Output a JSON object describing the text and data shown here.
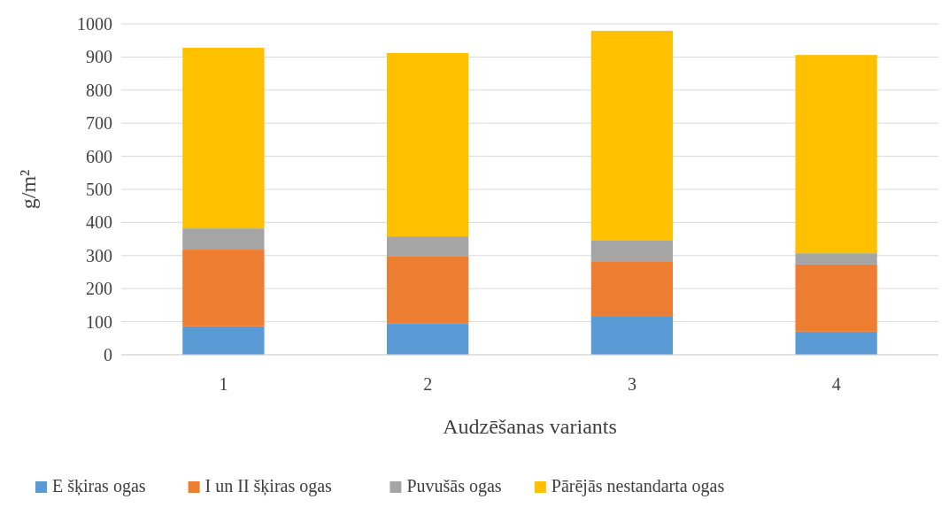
{
  "chart_data": {
    "type": "bar",
    "stacked": true,
    "xlabel": "Audzēšanas variants",
    "ylabel": "g/m²",
    "categories": [
      "1",
      "2",
      "3",
      "4"
    ],
    "series": [
      {
        "name": "E šķiras ogas",
        "color": "#5b9bd5",
        "values": [
          86,
          94,
          115,
          70
        ]
      },
      {
        "name": "I un II šķiras ogas",
        "color": "#ed7d31",
        "values": [
          232,
          203,
          168,
          203
        ]
      },
      {
        "name": "Puvušās ogas",
        "color": "#a5a5a5",
        "values": [
          64,
          61,
          62,
          34
        ]
      },
      {
        "name": "Pārējās nestandarta ogas",
        "color": "#ffc000",
        "values": [
          546,
          554,
          634,
          599
        ]
      }
    ],
    "ylim": [
      0,
      1000
    ],
    "yticks": [
      0,
      100,
      200,
      300,
      400,
      500,
      600,
      700,
      800,
      900,
      1000
    ],
    "grid": "y",
    "legend": "bottom"
  }
}
